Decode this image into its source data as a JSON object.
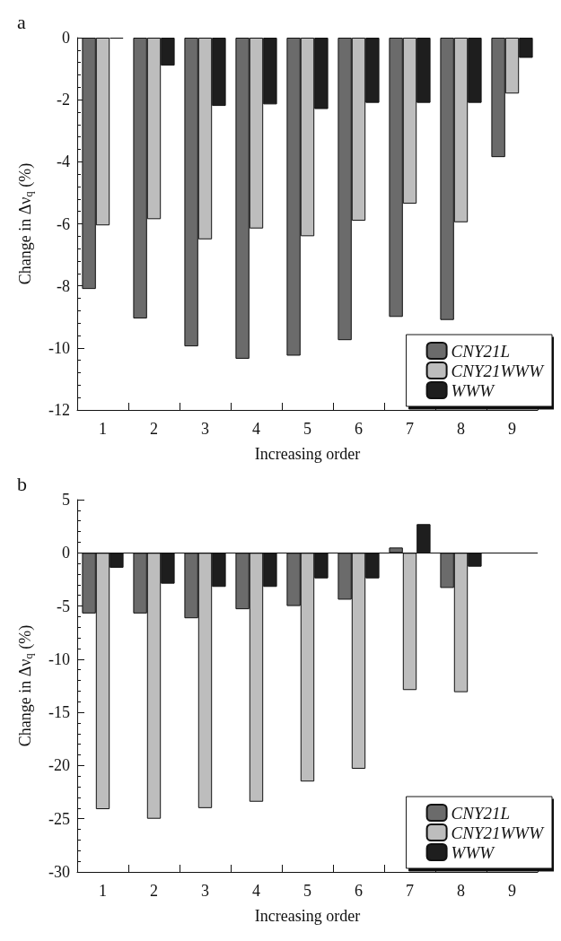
{
  "chart_data": [
    {
      "type": "bar",
      "title": "a",
      "xlabel": "Increasing order",
      "ylabel": "Change in Δν$_{q}$ (%)",
      "categories": [
        "1",
        "2",
        "3",
        "4",
        "5",
        "6",
        "7",
        "8",
        "9"
      ],
      "series": [
        {
          "name": "CNY21L",
          "color": "#6b6b6b",
          "values": [
            -8.1,
            -9.05,
            -9.95,
            -10.35,
            -10.25,
            -9.75,
            -9.0,
            -9.1,
            -3.85
          ]
        },
        {
          "name": "CNY21WWW",
          "color": "#bdbdbd",
          "values": [
            -6.05,
            -5.85,
            -6.5,
            -6.15,
            -6.4,
            -5.9,
            -5.35,
            -5.95,
            -1.8
          ]
        },
        {
          "name": "WWW",
          "color": "#1e1e1e",
          "values": [
            -0.03,
            -0.9,
            -2.2,
            -2.15,
            -2.3,
            -2.1,
            -2.1,
            -2.1,
            -0.65
          ]
        }
      ],
      "ylim": [
        -12,
        0
      ],
      "yticks": [
        -12,
        -10,
        -8,
        -6,
        -4,
        -2,
        0
      ],
      "grid": false,
      "legend": "bottom right"
    },
    {
      "type": "bar",
      "title": "b",
      "xlabel": "Increasing order",
      "ylabel": "Change in Δν$_{q}$ (%)",
      "categories": [
        "1",
        "2",
        "3",
        "4",
        "5",
        "6",
        "7",
        "8",
        "9"
      ],
      "series": [
        {
          "name": "CNY21L",
          "color": "#6b6b6b",
          "values": [
            -5.7,
            -5.7,
            -6.15,
            -5.3,
            -5.0,
            -4.4,
            0.5,
            -3.3,
            null
          ]
        },
        {
          "name": "CNY21WWW",
          "color": "#bdbdbd",
          "values": [
            -24.1,
            -25.0,
            -24.0,
            -23.4,
            -21.5,
            -20.3,
            -12.9,
            -13.1,
            null
          ]
        },
        {
          "name": "WWW",
          "color": "#1e1e1e",
          "values": [
            -1.4,
            -2.9,
            -3.2,
            -3.2,
            -2.4,
            -2.4,
            2.7,
            -1.3,
            null
          ]
        }
      ],
      "ylim": [
        -30,
        5
      ],
      "yticks": [
        -30,
        -25,
        -20,
        -15,
        -10,
        -5,
        0,
        5
      ],
      "grid": false,
      "legend": "bottom right",
      "ref_lines": [
        {
          "axis": "y",
          "value": 0
        }
      ]
    }
  ]
}
